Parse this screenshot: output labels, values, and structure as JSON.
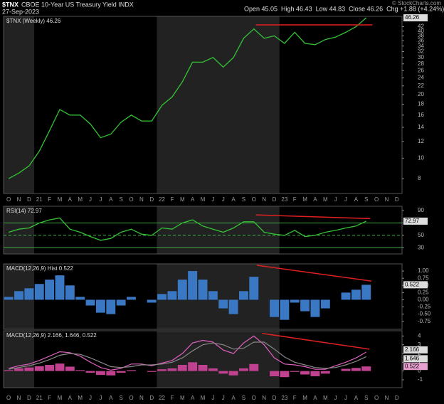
{
  "header": {
    "symbol": "$TNX",
    "name": "CBOE 10-Year US Treasury Yield INDX",
    "date": "27-Sep-2023",
    "quote": "Open 45.05  High 46.43  Low 44.83  Close 46.26  Chg +1.88 (+4.24%)",
    "credit": "© StockCharts.com"
  },
  "chart_data": [
    {
      "type": "line",
      "title": "$TNX (Weekly) 46.26",
      "log_scale": true,
      "color": "#33c233",
      "categories": [
        "O",
        "N",
        "D",
        "21",
        "F",
        "M",
        "A",
        "M",
        "J",
        "J",
        "A",
        "S",
        "O",
        "N",
        "D",
        "22",
        "F",
        "M",
        "A",
        "M",
        "J",
        "J",
        "A",
        "S",
        "O",
        "N",
        "D",
        "23",
        "F",
        "M",
        "A",
        "M",
        "J",
        "J",
        "A",
        "S",
        "O",
        "N",
        "D"
      ],
      "values": [
        8.0,
        8.5,
        9.2,
        10.8,
        13.5,
        17.0,
        16.0,
        16.0,
        14.5,
        12.5,
        13.0,
        14.8,
        16.0,
        15.0,
        15.0,
        17.8,
        19.5,
        23.0,
        28.5,
        28.5,
        30.0,
        27.0,
        30.0,
        37.0,
        41.0,
        37.0,
        38.0,
        35.0,
        39.5,
        35.0,
        34.5,
        36.5,
        37.5,
        39.5,
        42.0,
        46.26,
        null,
        null,
        null
      ],
      "ylim": [
        6.8,
        47
      ],
      "yticks": [
        8,
        10,
        12,
        14,
        16,
        18,
        20,
        22,
        24,
        26,
        28,
        30,
        32,
        34,
        36,
        38,
        40,
        42
      ],
      "trendline": {
        "color": "#e02020",
        "x": [
          24.2,
          35.6
        ],
        "y": [
          42.8,
          42.8
        ]
      }
    },
    {
      "type": "line",
      "title": "RSI(14) 72.97",
      "color": "#33c233",
      "values": [
        55,
        60,
        62,
        70,
        75,
        78,
        60,
        55,
        48,
        42,
        45,
        55,
        60,
        52,
        50,
        62,
        60,
        70,
        75,
        65,
        60,
        55,
        62,
        72,
        72,
        55,
        52,
        50,
        58,
        48,
        50,
        55,
        58,
        62,
        65,
        72.97,
        null,
        null,
        null
      ],
      "ylim": [
        20,
        97
      ],
      "yticks": [
        90,
        70,
        50,
        30
      ],
      "levels": [
        70,
        50,
        30
      ],
      "trendline": {
        "color": "#e02020",
        "x": [
          24.2,
          35.4
        ],
        "y": [
          83,
          77
        ]
      }
    },
    {
      "type": "bar",
      "title": "MACD(12,26,9) Hist 0.522",
      "color": "#3b78c4",
      "values": [
        0.1,
        0.3,
        0.4,
        0.55,
        0.7,
        0.85,
        0.5,
        0.1,
        -0.2,
        -0.45,
        -0.5,
        -0.2,
        0.1,
        0,
        -0.1,
        0.2,
        0.3,
        0.7,
        1.0,
        0.7,
        0.3,
        -0.3,
        -0.5,
        0.3,
        0.8,
        0,
        -0.6,
        -0.7,
        -0.1,
        -0.4,
        -0.6,
        -0.3,
        0,
        0.25,
        0.35,
        0.522,
        null,
        null,
        null
      ],
      "ylim": [
        -1.03,
        1.25
      ],
      "yticks": [
        {
          "value": 1,
          "label": "1.00"
        },
        0.75,
        {
          "value": 0.5,
          "label": "0.50"
        },
        0.25,
        {
          "value": 0,
          "label": "0.00"
        },
        -0.25,
        {
          "value": -0.5,
          "label": "-0.50"
        },
        -0.75
      ],
      "trendline": {
        "color": "#e02020",
        "x": [
          24.3,
          35.5
        ],
        "y": [
          1.2,
          0.65
        ]
      }
    },
    {
      "type": "macd",
      "title": "MACD(12,26,9) 2.166, 1.646, 0.522",
      "histogram_color": "#c0418f",
      "series": [
        {
          "color": "#e060c0",
          "values": [
            0.3,
            0.6,
            0.8,
            1.2,
            1.7,
            2.2,
            2.1,
            1.7,
            1.0,
            0.4,
            0.1,
            0.3,
            0.8,
            0.8,
            0.6,
            0.9,
            1.2,
            2.0,
            3.2,
            3.5,
            3.3,
            2.4,
            2.0,
            3.2,
            4.0,
            3.0,
            1.5,
            0.8,
            0.7,
            0.5,
            0.2,
            0.2,
            0.6,
            1.0,
            1.5,
            2.166,
            null,
            null,
            null
          ]
        },
        {
          "color": "#888888",
          "values": [
            0.2,
            0.4,
            0.6,
            0.9,
            1.3,
            1.8,
            2.0,
            1.9,
            1.5,
            1.0,
            0.5,
            0.4,
            0.5,
            0.7,
            0.7,
            0.8,
            1.0,
            1.5,
            2.3,
            3.0,
            3.2,
            3.0,
            2.5,
            2.6,
            3.3,
            3.3,
            2.5,
            1.6,
            1.0,
            0.7,
            0.4,
            0.3,
            0.4,
            0.7,
            1.1,
            1.646,
            null,
            null,
            null
          ]
        }
      ],
      "ylim": [
        -1.9,
        4.6
      ],
      "yticks": [
        4,
        3,
        2,
        1,
        0,
        -1
      ],
      "trendline": {
        "color": "#e02020",
        "x": [
          24.8,
          35.3
        ],
        "y": [
          4.3,
          2.5
        ]
      }
    }
  ]
}
